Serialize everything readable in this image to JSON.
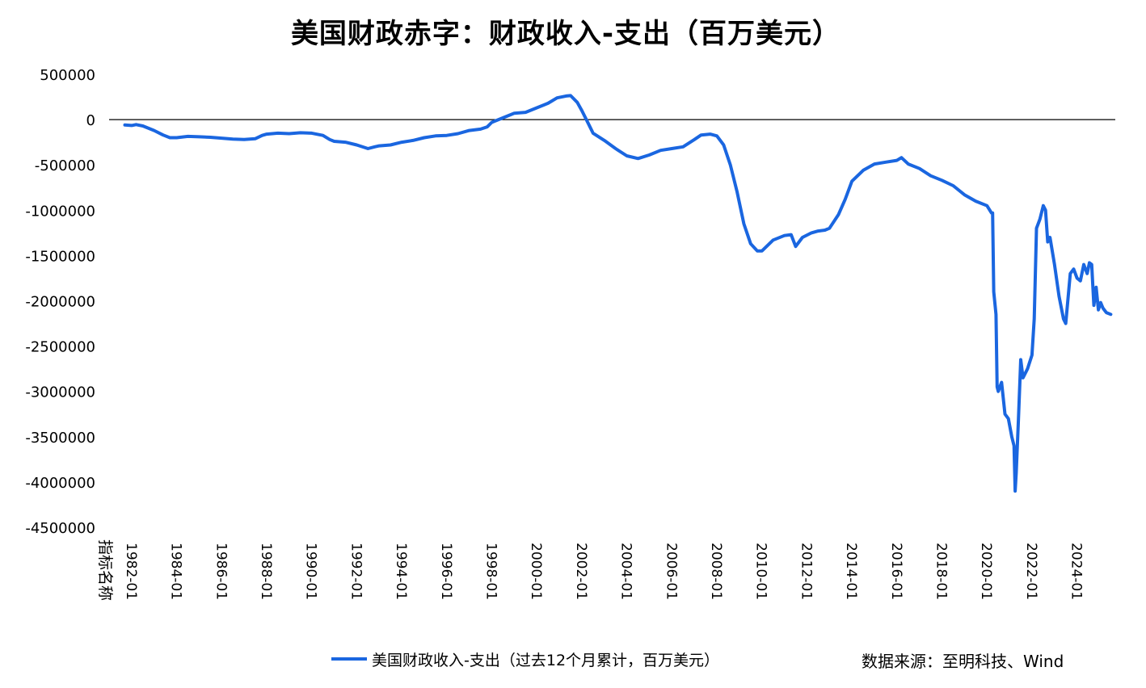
{
  "title": "美国财政赤字：财政收入-支出（百万美元）",
  "source": "数据来源：至明科技、Wind",
  "chart_data": {
    "type": "line",
    "x_category_label": "指标名称",
    "x_tick_labels": [
      "1982-01",
      "1984-01",
      "1986-01",
      "1988-01",
      "1990-01",
      "1992-01",
      "1994-01",
      "1996-01",
      "1998-01",
      "2000-01",
      "2002-01",
      "2004-01",
      "2006-01",
      "2008-01",
      "2010-01",
      "2012-01",
      "2014-01",
      "2016-01",
      "2018-01",
      "2020-01",
      "2022-01",
      "2024-01"
    ],
    "y_tick_labels": [
      "500000",
      "0",
      "-500000",
      "-1000000",
      "-1500000",
      "-2000000",
      "-2500000",
      "-3000000",
      "-3500000",
      "-4000000",
      "-4500000"
    ],
    "ylim": [
      -4500000,
      500000
    ],
    "xlim": [
      1981.0,
      2025.7
    ],
    "grid": false,
    "legend_position": "bottom",
    "series": [
      {
        "name": "美国财政收入-支出（过去12个月累计，百万美元）",
        "color": "#1a66e0",
        "points": [
          [
            1981.7,
            -60000
          ],
          [
            1982.0,
            -65000
          ],
          [
            1982.2,
            -55000
          ],
          [
            1982.5,
            -70000
          ],
          [
            1983.0,
            -120000
          ],
          [
            1983.4,
            -170000
          ],
          [
            1983.7,
            -200000
          ],
          [
            1984.0,
            -200000
          ],
          [
            1984.5,
            -185000
          ],
          [
            1985.0,
            -190000
          ],
          [
            1985.5,
            -195000
          ],
          [
            1986.0,
            -205000
          ],
          [
            1986.5,
            -215000
          ],
          [
            1987.0,
            -220000
          ],
          [
            1987.5,
            -210000
          ],
          [
            1987.8,
            -175000
          ],
          [
            1988.0,
            -160000
          ],
          [
            1988.5,
            -150000
          ],
          [
            1989.0,
            -155000
          ],
          [
            1989.5,
            -145000
          ],
          [
            1990.0,
            -150000
          ],
          [
            1990.5,
            -175000
          ],
          [
            1990.8,
            -220000
          ],
          [
            1991.0,
            -240000
          ],
          [
            1991.5,
            -250000
          ],
          [
            1992.0,
            -280000
          ],
          [
            1992.5,
            -320000
          ],
          [
            1992.8,
            -300000
          ],
          [
            1993.0,
            -290000
          ],
          [
            1993.5,
            -280000
          ],
          [
            1994.0,
            -250000
          ],
          [
            1994.5,
            -230000
          ],
          [
            1995.0,
            -200000
          ],
          [
            1995.5,
            -180000
          ],
          [
            1996.0,
            -175000
          ],
          [
            1996.5,
            -155000
          ],
          [
            1997.0,
            -120000
          ],
          [
            1997.5,
            -105000
          ],
          [
            1997.8,
            -80000
          ],
          [
            1998.0,
            -30000
          ],
          [
            1998.5,
            20000
          ],
          [
            1999.0,
            70000
          ],
          [
            1999.5,
            80000
          ],
          [
            2000.0,
            130000
          ],
          [
            2000.5,
            180000
          ],
          [
            2000.9,
            240000
          ],
          [
            2001.3,
            260000
          ],
          [
            2001.5,
            265000
          ],
          [
            2001.8,
            190000
          ],
          [
            2002.0,
            100000
          ],
          [
            2002.3,
            -50000
          ],
          [
            2002.5,
            -150000
          ],
          [
            2003.0,
            -230000
          ],
          [
            2003.5,
            -320000
          ],
          [
            2004.0,
            -400000
          ],
          [
            2004.5,
            -430000
          ],
          [
            2005.0,
            -390000
          ],
          [
            2005.5,
            -340000
          ],
          [
            2006.0,
            -320000
          ],
          [
            2006.5,
            -300000
          ],
          [
            2007.0,
            -220000
          ],
          [
            2007.3,
            -170000
          ],
          [
            2007.7,
            -160000
          ],
          [
            2008.0,
            -180000
          ],
          [
            2008.3,
            -280000
          ],
          [
            2008.6,
            -500000
          ],
          [
            2008.9,
            -800000
          ],
          [
            2009.2,
            -1150000
          ],
          [
            2009.5,
            -1370000
          ],
          [
            2009.8,
            -1450000
          ],
          [
            2010.0,
            -1450000
          ],
          [
            2010.5,
            -1330000
          ],
          [
            2011.0,
            -1280000
          ],
          [
            2011.3,
            -1270000
          ],
          [
            2011.5,
            -1400000
          ],
          [
            2011.8,
            -1300000
          ],
          [
            2012.2,
            -1250000
          ],
          [
            2012.5,
            -1230000
          ],
          [
            2012.8,
            -1220000
          ],
          [
            2013.0,
            -1200000
          ],
          [
            2013.4,
            -1050000
          ],
          [
            2013.7,
            -880000
          ],
          [
            2014.0,
            -680000
          ],
          [
            2014.5,
            -560000
          ],
          [
            2015.0,
            -490000
          ],
          [
            2015.5,
            -470000
          ],
          [
            2016.0,
            -450000
          ],
          [
            2016.2,
            -420000
          ],
          [
            2016.5,
            -490000
          ],
          [
            2017.0,
            -540000
          ],
          [
            2017.5,
            -620000
          ],
          [
            2018.0,
            -670000
          ],
          [
            2018.5,
            -730000
          ],
          [
            2019.0,
            -830000
          ],
          [
            2019.5,
            -900000
          ],
          [
            2020.0,
            -950000
          ],
          [
            2020.2,
            -1030000
          ],
          [
            2020.25,
            -1030000
          ],
          [
            2020.3,
            -1900000
          ],
          [
            2020.4,
            -2150000
          ],
          [
            2020.45,
            -2950000
          ],
          [
            2020.5,
            -3000000
          ],
          [
            2020.65,
            -2900000
          ],
          [
            2020.8,
            -3250000
          ],
          [
            2020.95,
            -3300000
          ],
          [
            2021.1,
            -3500000
          ],
          [
            2021.2,
            -3600000
          ],
          [
            2021.25,
            -4100000
          ],
          [
            2021.3,
            -3900000
          ],
          [
            2021.4,
            -3300000
          ],
          [
            2021.5,
            -2650000
          ],
          [
            2021.6,
            -2850000
          ],
          [
            2021.8,
            -2750000
          ],
          [
            2022.0,
            -2600000
          ],
          [
            2022.1,
            -2200000
          ],
          [
            2022.2,
            -1200000
          ],
          [
            2022.35,
            -1100000
          ],
          [
            2022.5,
            -950000
          ],
          [
            2022.6,
            -1000000
          ],
          [
            2022.7,
            -1350000
          ],
          [
            2022.8,
            -1300000
          ],
          [
            2023.0,
            -1600000
          ],
          [
            2023.2,
            -1950000
          ],
          [
            2023.4,
            -2200000
          ],
          [
            2023.5,
            -2250000
          ],
          [
            2023.7,
            -1700000
          ],
          [
            2023.85,
            -1650000
          ],
          [
            2024.0,
            -1750000
          ],
          [
            2024.15,
            -1780000
          ],
          [
            2024.3,
            -1600000
          ],
          [
            2024.45,
            -1700000
          ],
          [
            2024.55,
            -1580000
          ],
          [
            2024.65,
            -1600000
          ],
          [
            2024.75,
            -2050000
          ],
          [
            2024.85,
            -1850000
          ],
          [
            2024.95,
            -2100000
          ],
          [
            2025.05,
            -2020000
          ],
          [
            2025.15,
            -2080000
          ],
          [
            2025.3,
            -2130000
          ],
          [
            2025.5,
            -2150000
          ]
        ]
      }
    ]
  }
}
